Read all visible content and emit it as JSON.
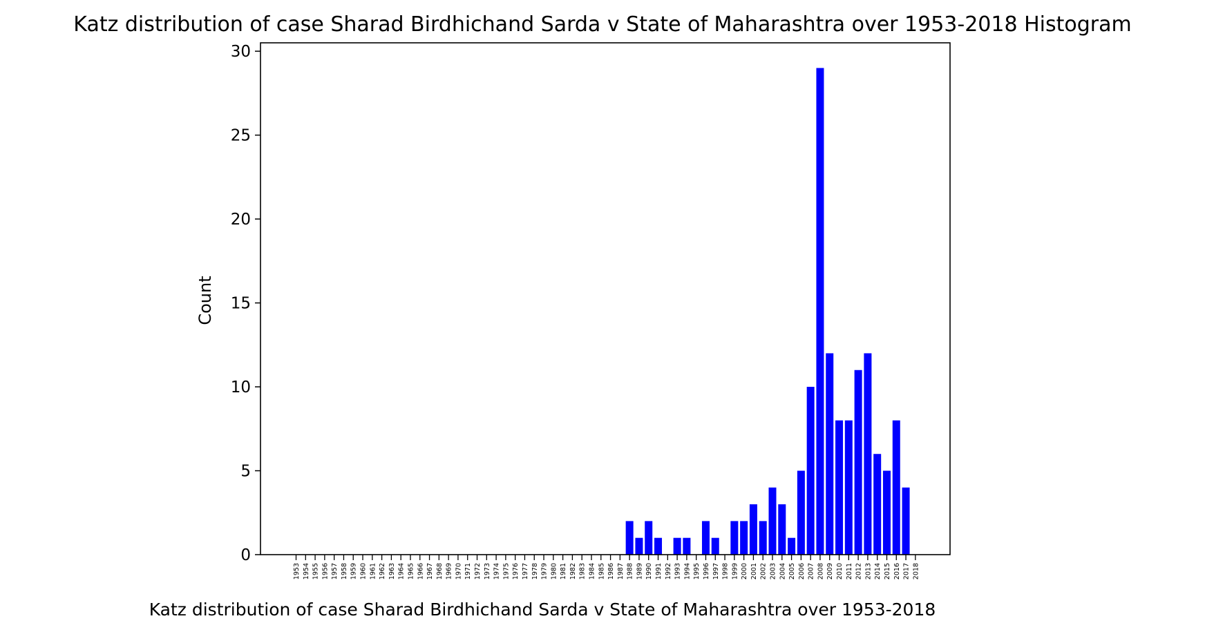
{
  "chart_data": {
    "type": "bar",
    "title": "Katz distribution of case Sharad Birdhichand Sarda v State of Maharashtra over 1953-2018 Histogram",
    "xlabel": "Katz distribution of case Sharad Birdhichand Sarda v State of Maharashtra over 1953-2018",
    "ylabel": "Count",
    "ylim": [
      0,
      30.5
    ],
    "yticks": [
      0,
      5,
      10,
      15,
      20,
      25,
      30
    ],
    "grid": false,
    "bar_color": "#0000ff",
    "categories": [
      "1953",
      "1954",
      "1955",
      "1956",
      "1957",
      "1958",
      "1959",
      "1960",
      "1961",
      "1962",
      "1963",
      "1964",
      "1965",
      "1966",
      "1967",
      "1968",
      "1969",
      "1970",
      "1971",
      "1972",
      "1973",
      "1974",
      "1975",
      "1976",
      "1977",
      "1978",
      "1979",
      "1980",
      "1981",
      "1982",
      "1983",
      "1984",
      "1985",
      "1986",
      "1987",
      "1988",
      "1989",
      "1990",
      "1991",
      "1992",
      "1993",
      "1994",
      "1995",
      "1996",
      "1997",
      "1998",
      "1999",
      "2000",
      "2001",
      "2002",
      "2003",
      "2004",
      "2005",
      "2006",
      "2007",
      "2008",
      "2009",
      "2010",
      "2011",
      "2012",
      "2013",
      "2014",
      "2015",
      "2016",
      "2017",
      "2018"
    ],
    "values": [
      0,
      0,
      0,
      0,
      0,
      0,
      0,
      0,
      0,
      0,
      0,
      0,
      0,
      0,
      0,
      0,
      0,
      0,
      0,
      0,
      0,
      0,
      0,
      0,
      0,
      0,
      0,
      0,
      0,
      0,
      0,
      0,
      0,
      0,
      0,
      2,
      1,
      2,
      1,
      0,
      1,
      1,
      0,
      2,
      1,
      0,
      2,
      2,
      3,
      2,
      4,
      3,
      1,
      5,
      10,
      29,
      12,
      8,
      8,
      11,
      12,
      6,
      5,
      8,
      4,
      0
    ]
  }
}
